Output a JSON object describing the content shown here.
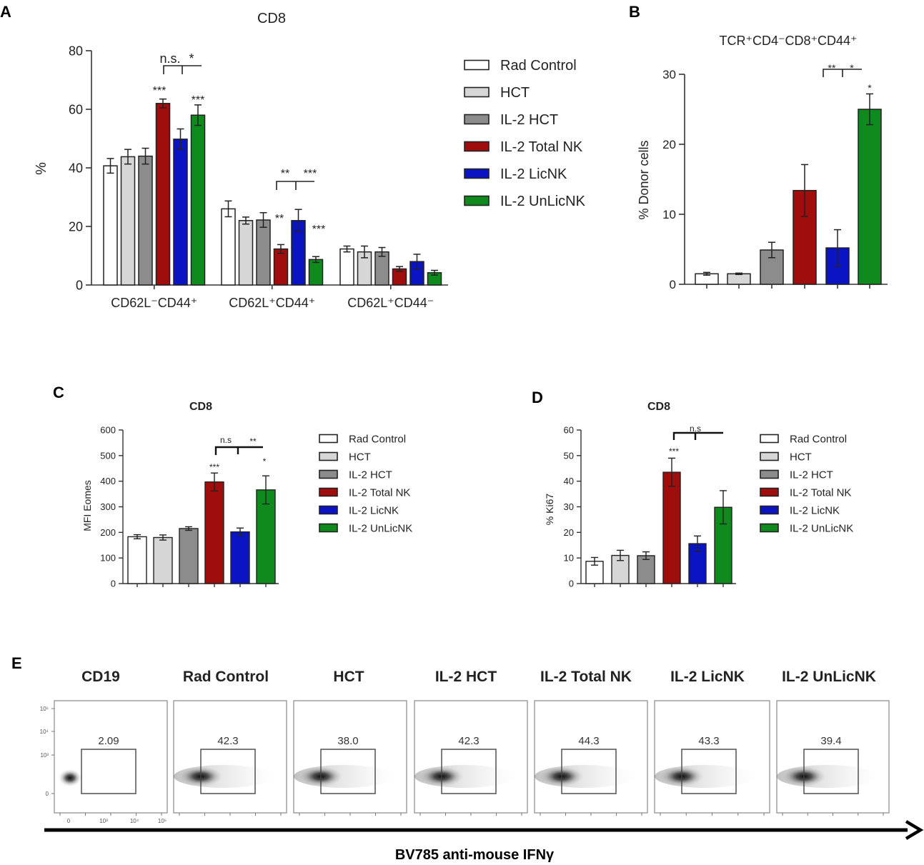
{
  "colors": {
    "rad_control": "#ffffff",
    "hct": "#d6d6d6",
    "il2_hct": "#8c8c8c",
    "il2_total_nk": "#a00d0d",
    "il2_licnk": "#0b14c2",
    "il2_unlicnk": "#0f8a1d",
    "axis": "#333333"
  },
  "groups": [
    "Rad Control",
    "HCT",
    "IL-2 HCT",
    "IL-2 Total NK",
    "IL-2 LicNK",
    "IL-2 UnLicNK"
  ],
  "panel_letters": {
    "a": "A",
    "b": "B",
    "c": "C",
    "d": "D",
    "e": "E"
  },
  "chart_data": [
    {
      "id": "A",
      "type": "bar",
      "title": "CD8",
      "ylabel": "%",
      "xlabel": "",
      "ylim": [
        0,
        80
      ],
      "yticks": [
        0,
        20,
        40,
        60,
        80
      ],
      "categories": [
        "CD62L⁻CD44⁺",
        "CD62L⁺CD44⁺",
        "CD62L⁺CD44⁻"
      ],
      "series": [
        {
          "name": "Rad Control",
          "values": [
            40.7,
            26.0,
            12.3
          ],
          "errors": [
            2.5,
            2.7,
            1.0
          ]
        },
        {
          "name": "HCT",
          "values": [
            43.8,
            22.0,
            11.3
          ],
          "errors": [
            2.5,
            1.2,
            2.0
          ]
        },
        {
          "name": "IL-2 HCT",
          "values": [
            44.0,
            22.2,
            11.3
          ],
          "errors": [
            2.7,
            2.5,
            1.5
          ]
        },
        {
          "name": "IL-2 Total NK",
          "values": [
            62.0,
            12.3,
            5.5
          ],
          "errors": [
            1.5,
            1.5,
            0.8
          ]
        },
        {
          "name": "IL-2 LicNK",
          "values": [
            49.8,
            22.0,
            8.0
          ],
          "errors": [
            3.5,
            3.8,
            2.5
          ]
        },
        {
          "name": "IL-2 UnLicNK",
          "values": [
            58.0,
            8.7,
            4.2
          ],
          "errors": [
            3.5,
            1.0,
            0.8
          ]
        }
      ],
      "annotations": {
        "bar_stars": [
          "***",
          "***",
          "**",
          "***"
        ],
        "bracket_1": [
          "n.s.",
          "*"
        ],
        "bracket_2": [
          "**",
          "***"
        ]
      },
      "legend": {
        "placement": "right",
        "entries": [
          "Rad Control",
          "HCT",
          "IL-2 HCT",
          "IL-2 Total NK",
          "IL-2 LicNK",
          "IL-2 UnLicNK"
        ]
      }
    },
    {
      "id": "B",
      "type": "bar",
      "title": "TCR⁺CD4⁻CD8⁺CD44⁺",
      "ylabel": "% Donor cells",
      "xlabel": "",
      "ylim": [
        0,
        30
      ],
      "yticks": [
        0,
        10,
        20,
        30
      ],
      "categories": [
        "Rad Control",
        "HCT",
        "IL-2 HCT",
        "IL-2 Total NK",
        "IL-2 LicNK",
        "IL-2 UnLicNK"
      ],
      "values": [
        1.5,
        1.5,
        4.9,
        13.4,
        5.2,
        25.0
      ],
      "errors": [
        0.2,
        0.1,
        1.1,
        3.7,
        2.6,
        2.2
      ],
      "annotations": {
        "bar_star": "*",
        "bracket": [
          "**",
          "*"
        ]
      }
    },
    {
      "id": "C",
      "type": "bar",
      "title": "CD8",
      "ylabel": "MFI Eomes",
      "xlabel": "",
      "ylim": [
        0,
        600
      ],
      "yticks": [
        0,
        100,
        200,
        300,
        400,
        500,
        600
      ],
      "categories": [
        "Rad Control",
        "HCT",
        "IL-2 HCT",
        "IL-2 Total NK",
        "IL-2 LicNK",
        "IL-2 UnLicNK"
      ],
      "values": [
        183,
        180,
        215,
        397,
        202,
        366
      ],
      "errors": [
        8,
        10,
        7,
        35,
        15,
        55
      ],
      "annotations": {
        "bar_stars": [
          "***",
          "*"
        ],
        "bracket": [
          "n.s",
          "**"
        ]
      },
      "legend": {
        "placement": "right",
        "entries": [
          "Rad Control",
          "HCT",
          "IL-2 HCT",
          "IL-2 Total NK",
          "IL-2 LicNK",
          "IL-2 UnLicNK"
        ]
      }
    },
    {
      "id": "D",
      "type": "bar",
      "title": "CD8",
      "ylabel": "% Ki67",
      "xlabel": "",
      "ylim": [
        0,
        60
      ],
      "yticks": [
        0,
        10,
        20,
        30,
        40,
        50,
        60
      ],
      "categories": [
        "Rad Control",
        "HCT",
        "IL-2 HCT",
        "IL-2 Total NK",
        "IL-2 LicNK",
        "IL-2 UnLicNK"
      ],
      "values": [
        8.7,
        11.0,
        10.9,
        43.5,
        15.6,
        29.8
      ],
      "errors": [
        1.5,
        2.0,
        1.5,
        5.5,
        3.0,
        6.5
      ],
      "annotations": {
        "bar_star": "***",
        "bracket": "n.s"
      },
      "legend": {
        "placement": "right",
        "entries": [
          "Rad Control",
          "HCT",
          "IL-2 HCT",
          "IL-2 Total NK",
          "IL-2 LicNK",
          "IL-2 UnLicNK"
        ]
      }
    }
  ],
  "flow": {
    "panels": [
      {
        "label": "CD19",
        "value": "2.09"
      },
      {
        "label": "Rad Control",
        "value": "42.3"
      },
      {
        "label": "HCT",
        "value": "38.0"
      },
      {
        "label": "IL-2 HCT",
        "value": "42.3"
      },
      {
        "label": "IL-2 Total NK",
        "value": "44.3"
      },
      {
        "label": "IL-2 LicNK",
        "value": "43.3"
      },
      {
        "label": "IL-2 UnLicNK",
        "value": "39.4"
      }
    ],
    "x_label": "BV785 anti-mouse IFNγ",
    "y_ticks": [
      "10⁵",
      "10⁴",
      "10³",
      "0"
    ],
    "x_ticks": [
      "0",
      "10³",
      "10⁴",
      "10⁵"
    ]
  }
}
